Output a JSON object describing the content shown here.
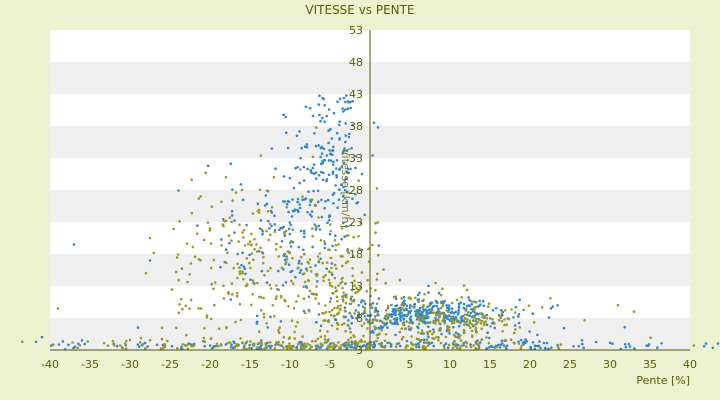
{
  "chart_data": {
    "type": "scatter",
    "title": "VITESSE vs PENTE",
    "xlabel": "Pente [%]",
    "ylabel": "Vitesse [km/h]",
    "xlim": [
      -40,
      40
    ],
    "ylim": [
      3,
      53
    ],
    "x_ticks": [
      -40,
      -35,
      -30,
      -25,
      -20,
      -15,
      -10,
      -5,
      0,
      5,
      10,
      15,
      20,
      25,
      30,
      35,
      40
    ],
    "y_ticks": [
      3,
      8,
      13,
      18,
      23,
      28,
      33,
      38,
      43,
      48,
      53
    ],
    "y_axis_position": "x = 0 (centre)",
    "grid": "horizontal alternating bands",
    "legend": "none",
    "colors": {
      "background": "#ecf1cf",
      "band_light": "#ffffff",
      "band_dark": "#efefef",
      "axis": "#555500",
      "text": "#5c5c00",
      "series_blue": "#2e86d4",
      "series_olive": "#9a9a1e"
    },
    "series": [
      {
        "color": "#2e86d4",
        "clusters": [
          {
            "x_mean": -5.5,
            "x_sd": 2.2,
            "y_mean": 33,
            "y_sd": 6,
            "count": 150,
            "y_min": 14
          },
          {
            "x_mean": -10,
            "x_sd": 4,
            "y_mean": 21,
            "y_sd": 6,
            "count": 170
          },
          {
            "x_mean": 6,
            "x_sd": 5,
            "y_mean": 8.6,
            "y_sd": 1.4,
            "count": 360
          },
          {
            "x_mean": 0,
            "x_sd": 20,
            "y_mean": 3.7,
            "y_sd": 0.4,
            "count": 230
          },
          {
            "x_mean": 12,
            "x_sd": 9,
            "y_mean": 6,
            "y_sd": 3,
            "count": 60
          }
        ],
        "points": [
          [
            -37,
            19.5
          ],
          [
            -29,
            6.5
          ],
          [
            -8,
            41
          ],
          [
            -5.8,
            42.2
          ],
          [
            -4.5,
            40
          ],
          [
            0.5,
            38.5
          ],
          [
            1,
            37.8
          ],
          [
            -1,
            30.5
          ],
          [
            -36,
            4.5
          ],
          [
            -41,
            5
          ],
          [
            42,
            4
          ],
          [
            -27.5,
            17
          ]
        ]
      },
      {
        "color": "#9a9a1e",
        "clusters": [
          {
            "x_mean": -14,
            "x_sd": 6,
            "y_mean": 15,
            "y_sd": 7,
            "count": 260
          },
          {
            "x_mean": -4,
            "x_sd": 3,
            "y_mean": 12,
            "y_sd": 6,
            "count": 140
          },
          {
            "x_mean": 8,
            "x_sd": 6,
            "y_mean": 7.5,
            "y_sd": 2.2,
            "count": 240
          },
          {
            "x_mean": -5,
            "x_sd": 16,
            "y_mean": 3.9,
            "y_sd": 0.5,
            "count": 180
          }
        ],
        "points": [
          [
            -27.5,
            20.5
          ],
          [
            -28,
            15
          ],
          [
            -18,
            30
          ],
          [
            -39,
            9.5
          ],
          [
            33,
            9
          ],
          [
            31,
            10
          ],
          [
            -16,
            28
          ],
          [
            -12,
            30
          ]
        ]
      }
    ]
  }
}
